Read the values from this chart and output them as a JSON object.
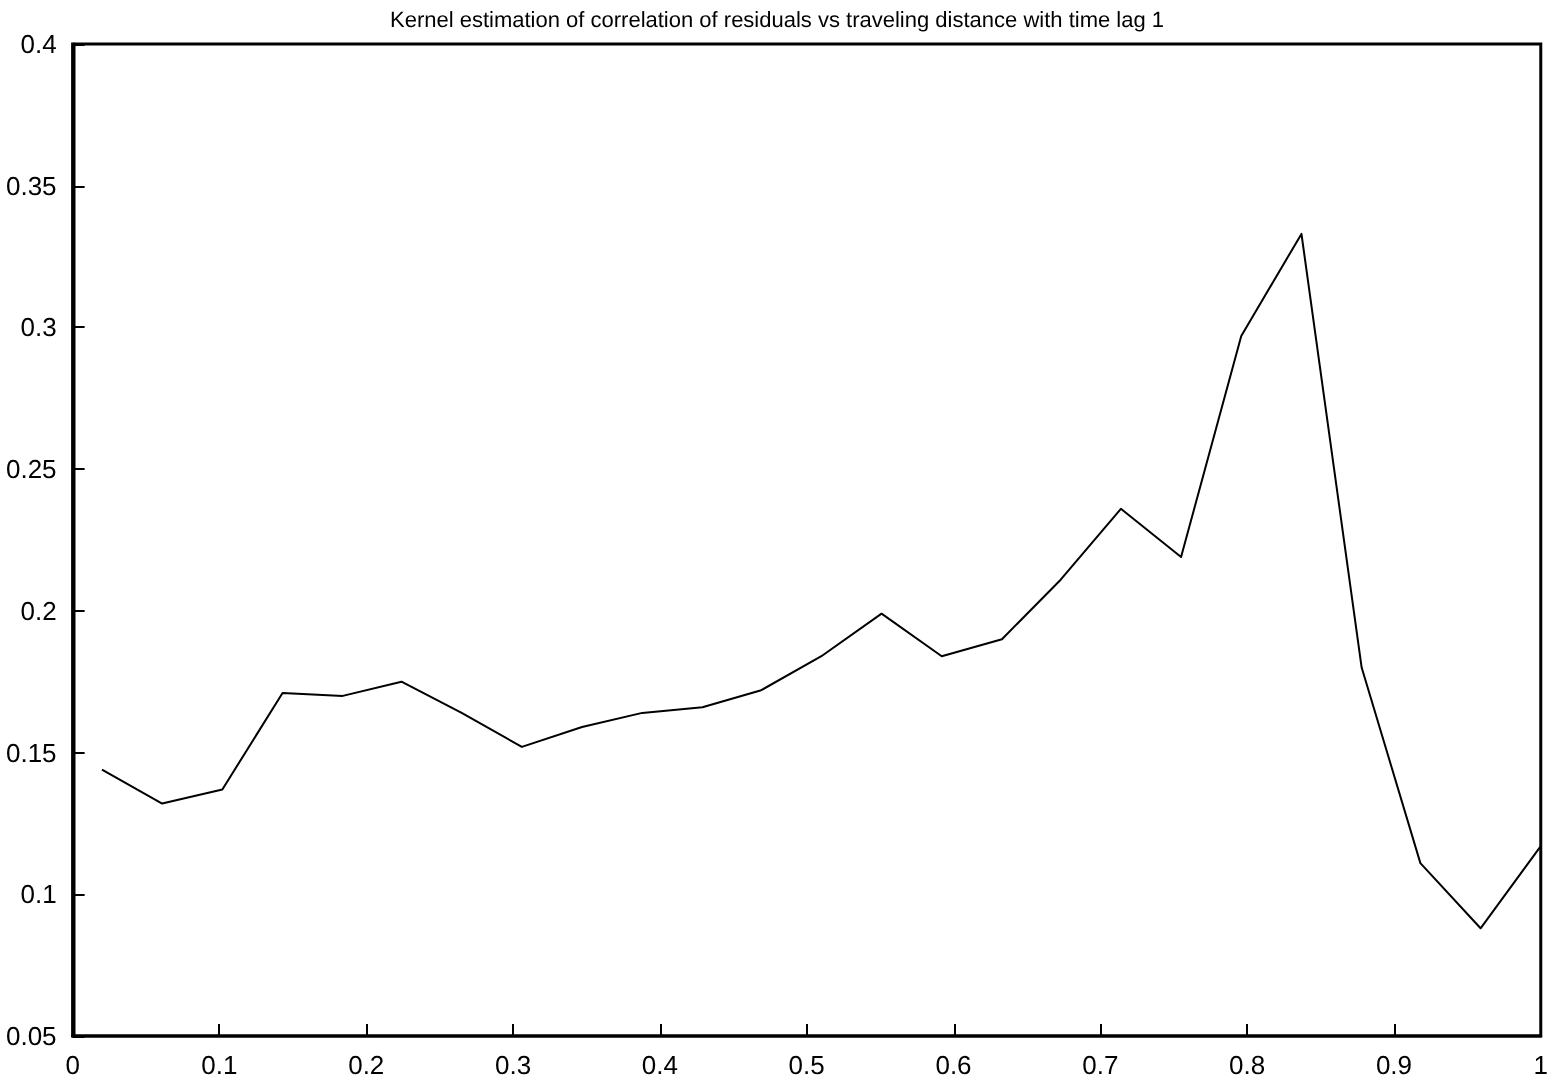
{
  "chart_data": {
    "type": "line",
    "title": "Kernel estimation of correlation of residuals vs traveling distance with time lag 1",
    "x": [
      0.02,
      0.061,
      0.102,
      0.143,
      0.184,
      0.224,
      0.265,
      0.306,
      0.347,
      0.388,
      0.429,
      0.469,
      0.51,
      0.551,
      0.592,
      0.633,
      0.673,
      0.714,
      0.755,
      0.796,
      0.837,
      0.878,
      0.918,
      0.959,
      1.0
    ],
    "series": [
      {
        "color": "#000000",
        "values": [
          0.144,
          0.132,
          0.137,
          0.171,
          0.17,
          0.175,
          0.164,
          0.152,
          0.159,
          0.164,
          0.166,
          0.172,
          0.184,
          0.199,
          0.184,
          0.19,
          0.211,
          0.236,
          0.219,
          0.297,
          0.333,
          0.18,
          0.111,
          0.088,
          0.117
        ]
      }
    ],
    "xlim": [
      0,
      1
    ],
    "xticks": [
      0,
      0.1,
      0.2,
      0.3,
      0.4,
      0.5,
      0.6,
      0.7,
      0.8,
      0.9,
      1
    ],
    "ylim": [
      0.05,
      0.4
    ],
    "yticks": [
      0.05,
      0.1,
      0.15,
      0.2,
      0.25,
      0.3,
      0.35,
      0.4
    ],
    "grid": false,
    "marker": "none",
    "line_style": "solid"
  }
}
